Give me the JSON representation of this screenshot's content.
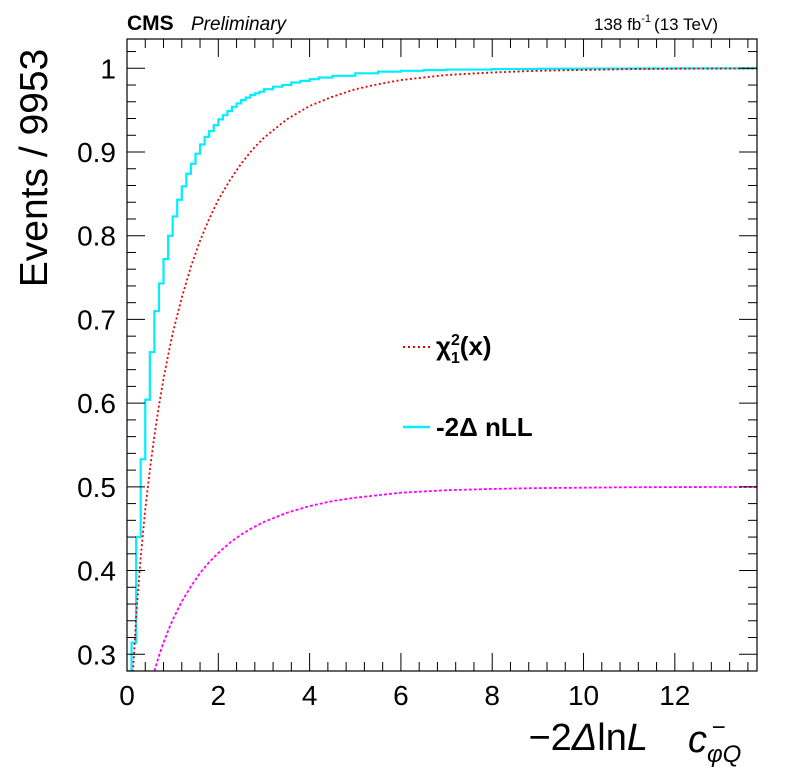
{
  "header": {
    "experiment": "CMS",
    "status": "Preliminary",
    "lumi_value": "138 fb",
    "lumi_exponent": "-1",
    "energy": "(13 TeV)"
  },
  "chart_data": {
    "type": "line",
    "xlabel": "−2ΔlnL",
    "xlabel_parts": {
      "prefix": "−2",
      "delta": "Δ",
      "ln": "ln",
      "var": "L"
    },
    "parameter_label": {
      "base": "c",
      "subscript": "φQ",
      "superscript": "−"
    },
    "ylabel": "Events / 9953",
    "xlim": [
      0,
      13.8
    ],
    "ylim": [
      0.28,
      1.035
    ],
    "xticks": [
      0,
      2,
      4,
      6,
      8,
      10,
      12
    ],
    "yticks": [
      0.3,
      0.4,
      0.5,
      0.6,
      0.7,
      0.8,
      0.9,
      1
    ],
    "grid": false,
    "legend_position": "center-right",
    "legend": [
      {
        "series": "chi2",
        "label_parts": {
          "chi": "χ",
          "sup": "2",
          "sub": "1",
          "rest": "(x)"
        }
      },
      {
        "series": "nll",
        "label": "-2Δ nLL"
      }
    ],
    "series": [
      {
        "id": "nll",
        "style": "step",
        "color": "#00eeff",
        "x": [
          0.0,
          0.1,
          0.2,
          0.3,
          0.4,
          0.5,
          0.6,
          0.7,
          0.8,
          0.9,
          1.0,
          1.1,
          1.2,
          1.3,
          1.4,
          1.5,
          1.6,
          1.7,
          1.8,
          1.9,
          2.0,
          2.1,
          2.2,
          2.3,
          2.4,
          2.5,
          2.6,
          2.7,
          2.8,
          2.9,
          3.0,
          3.2,
          3.4,
          3.6,
          3.8,
          4.0,
          4.2,
          4.5,
          5.0,
          5.5,
          6.0,
          6.5,
          7.0,
          8.0,
          9.0,
          10.0,
          11.0,
          12.0,
          13.0,
          13.8
        ],
        "y": [
          0.28,
          0.314,
          0.44,
          0.533,
          0.604,
          0.661,
          0.71,
          0.743,
          0.772,
          0.8,
          0.823,
          0.843,
          0.859,
          0.874,
          0.886,
          0.898,
          0.909,
          0.918,
          0.925,
          0.932,
          0.939,
          0.944,
          0.949,
          0.954,
          0.958,
          0.962,
          0.965,
          0.968,
          0.97,
          0.972,
          0.975,
          0.978,
          0.98,
          0.983,
          0.985,
          0.987,
          0.989,
          0.991,
          0.994,
          0.996,
          0.997,
          0.998,
          0.9985,
          0.999,
          0.9995,
          0.9997,
          0.9998,
          0.9999,
          1.0,
          1.0
        ]
      },
      {
        "id": "chi2",
        "style": "dotted",
        "color": "#e60000",
        "x": [
          0.05,
          0.1,
          0.2,
          0.3,
          0.4,
          0.5,
          0.6,
          0.7,
          0.8,
          0.9,
          1.0,
          1.2,
          1.4,
          1.6,
          1.8,
          2.0,
          2.25,
          2.5,
          2.75,
          3.0,
          3.5,
          4.0,
          4.5,
          5.0,
          5.5,
          6.0,
          7.0,
          8.0,
          9.0,
          10.0,
          11.0,
          12.0,
          13.0,
          13.8
        ],
        "y": [
          0.177,
          0.248,
          0.345,
          0.416,
          0.473,
          0.52,
          0.561,
          0.597,
          0.629,
          0.657,
          0.683,
          0.726,
          0.763,
          0.794,
          0.82,
          0.843,
          0.866,
          0.886,
          0.903,
          0.917,
          0.939,
          0.955,
          0.966,
          0.975,
          0.981,
          0.986,
          0.992,
          0.995,
          0.997,
          0.998,
          0.999,
          0.9995,
          0.9997,
          0.9998
        ]
      },
      {
        "id": "half_chi2",
        "style": "dashed",
        "color": "#ff00ff",
        "x": [
          0.6,
          0.7,
          0.8,
          0.9,
          1.0,
          1.2,
          1.4,
          1.6,
          1.8,
          2.0,
          2.25,
          2.5,
          2.75,
          3.0,
          3.5,
          4.0,
          4.5,
          5.0,
          5.5,
          6.0,
          7.0,
          8.0,
          9.0,
          10.0,
          11.0,
          12.0,
          13.0,
          13.8
        ],
        "y": [
          0.28,
          0.298,
          0.314,
          0.328,
          0.341,
          0.363,
          0.381,
          0.397,
          0.41,
          0.421,
          0.433,
          0.443,
          0.451,
          0.458,
          0.469,
          0.477,
          0.483,
          0.487,
          0.49,
          0.493,
          0.496,
          0.4975,
          0.4985,
          0.499,
          0.4995,
          0.4997,
          0.4998,
          0.4999
        ]
      }
    ]
  }
}
